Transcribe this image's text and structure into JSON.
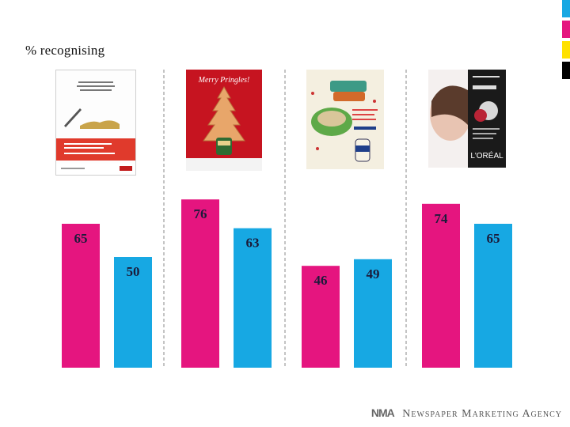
{
  "title": "% recognising",
  "colors": {
    "magenta": "#e5157f",
    "cyan": "#17a8e3",
    "swatches": [
      "#17a8e3",
      "#e5157f",
      "#ffe100",
      "#000000"
    ]
  },
  "ads": [
    {
      "icon": "newspaper-ad-thumbnail"
    },
    {
      "icon": "merry-pringles-ad-thumbnail",
      "caption": "Merry Pringles!"
    },
    {
      "icon": "hellmanns-ad-thumbnail"
    },
    {
      "icon": "loreal-revitalift-ad-thumbnail",
      "caption": "L'ORÉAL"
    }
  ],
  "chart_data": {
    "type": "bar",
    "categories": [
      "Ad 1",
      "Ad 2",
      "Ad 3",
      "Ad 4"
    ],
    "series": [
      {
        "values": [
          65,
          76,
          46,
          74
        ],
        "color": "#e5157f"
      },
      {
        "values": [
          50,
          63,
          49,
          65
        ],
        "color": "#17a8e3"
      }
    ],
    "ylim": [
      0,
      100
    ],
    "grid": false,
    "legend": "none",
    "dividers": "dashed vertical lines between groups"
  },
  "footer": {
    "mark": "NMA",
    "text": "Newspaper Marketing Agency"
  }
}
